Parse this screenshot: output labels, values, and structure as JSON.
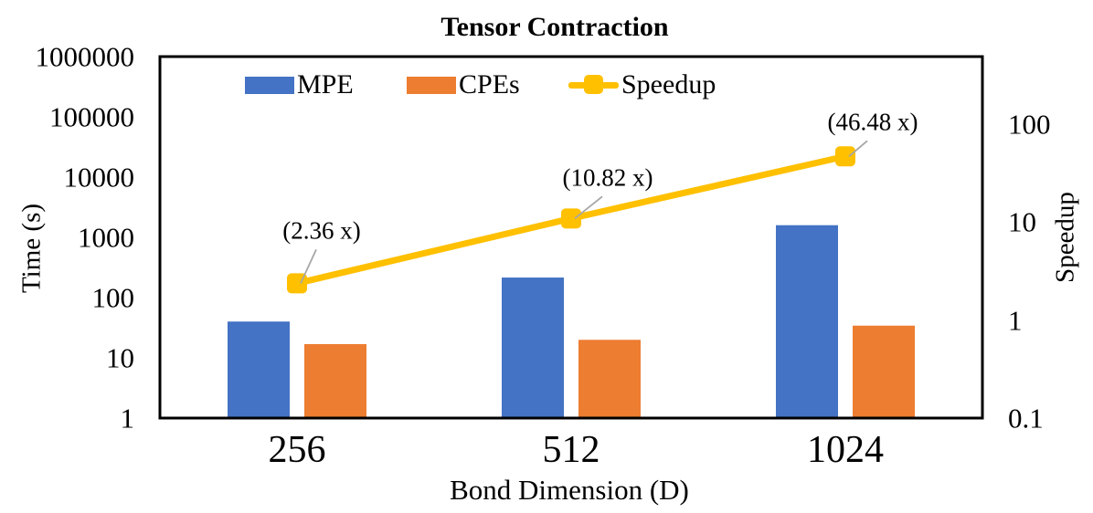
{
  "chart_data": {
    "type": "bar",
    "subtype": "combo-bar-line-dual-log-axes",
    "title": "Tensor Contraction",
    "categories": [
      "256",
      "512",
      "1024"
    ],
    "series": [
      {
        "name": "MPE",
        "type": "bar",
        "axis": "left",
        "color": "#4472C4",
        "values": [
          40,
          215,
          1590
        ]
      },
      {
        "name": "CPEs",
        "type": "bar",
        "axis": "left",
        "color": "#ED7D31",
        "values": [
          16.9,
          19.9,
          34.2
        ]
      },
      {
        "name": "Speedup",
        "type": "line",
        "axis": "right",
        "color": "#FFC000",
        "values": [
          2.36,
          10.82,
          46.48
        ]
      }
    ],
    "annotations": [
      "(2.36 x)",
      "(10.82 x)",
      "(46.48 x)"
    ],
    "left_axis": {
      "title": "Time (s)",
      "scale": "log",
      "ticks": [
        "1",
        "10",
        "100",
        "1000",
        "10000",
        "100000",
        "1000000"
      ],
      "min": 1,
      "max": 1000000
    },
    "right_axis": {
      "title": "Speedup",
      "scale": "log",
      "ticks": [
        "0.1",
        "1",
        "10",
        "100"
      ],
      "min": 0.1
    },
    "x_axis": {
      "title": "Bond Dimension (D)"
    },
    "legend": {
      "position": "top-inside",
      "entries": [
        "MPE",
        "CPEs",
        "Speedup"
      ]
    },
    "grid": false,
    "colors": {
      "frame": "#000000",
      "leader_line": "#A6A6A6",
      "text": "#000000",
      "background": "#FFFFFF"
    }
  }
}
